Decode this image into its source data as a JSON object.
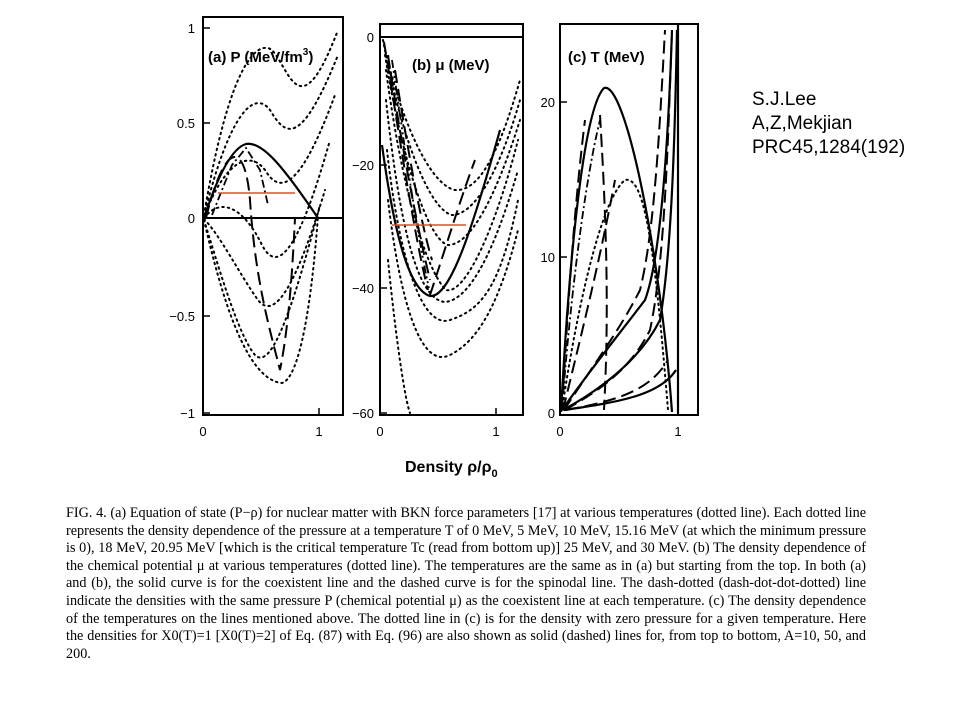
{
  "reference": {
    "authors_line1": "S.J.Lee",
    "authors_line2": "A,Z,Mekjian",
    "citation": "PRC45,1284(192)"
  },
  "figure": {
    "x_axis_label": "Density ρ/ρ",
    "x_axis_label_subscript": "0",
    "panels": [
      {
        "id": "a",
        "title": "(a) P (MeV/fm",
        "title_sup": "3",
        "title_end": ")",
        "x_ticks": [
          "0",
          "1"
        ],
        "y_ticks": [
          "1",
          "0.5",
          "0",
          "−0.5",
          "−1"
        ]
      },
      {
        "id": "b",
        "title": "(b) μ (MeV)",
        "x_ticks": [
          "0",
          "1"
        ],
        "y_ticks": [
          "0",
          "−20",
          "−40",
          "−60"
        ]
      },
      {
        "id": "c",
        "title": "(c) T (MeV)",
        "x_ticks": [
          "0",
          "1"
        ],
        "y_ticks": [
          "20",
          "10",
          "0"
        ]
      }
    ],
    "colors": {
      "ink": "#000000",
      "isobar": "#d2542c"
    }
  },
  "caption": {
    "text": "FIG. 4.  (a) Equation of state (P−ρ) for nuclear matter with BKN force parameters [17] at various temperatures (dotted line). Each dotted line represents the density dependence of the pressure at a temperature T of 0 MeV, 5 MeV, 10 MeV, 15.16 MeV (at which the minimum pressure is 0), 18 MeV, 20.95 MeV [which is the critical temperature Tc (read from bottom up)] 25 MeV, and 30 MeV.  (b) The density dependence of the chemical potential μ at various temperatures (dotted line). The temperatures are the same as in (a) but starting from the top.  In both (a) and (b), the solid curve is for the coexistent line and the dashed curve is for the spinodal line.  The dash-dotted (dash-dot-dot-dotted) line indicate the densities with the same pressure P (chemical potential μ) as the coexistent line at each temperature.  (c) The density dependence of the temperatures on the lines mentioned above.  The dotted line in (c) is for the density with zero pressure for a given temperature.  Here the densities for X0(T)=1 [X0(T)=2] of Eq. (87) with Eq. (96) are also shown as solid (dashed) lines for, from top to bottom, A=10, 50, and 200."
  }
}
